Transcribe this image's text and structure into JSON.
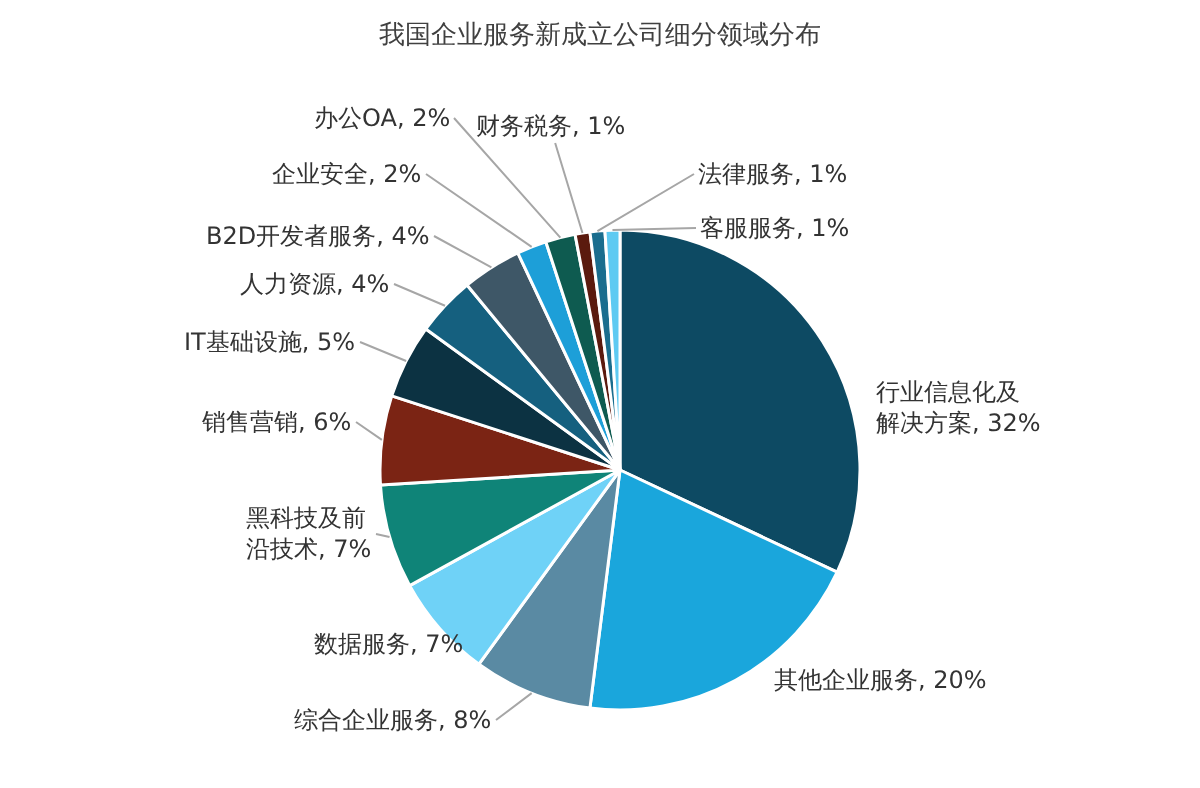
{
  "chart_data": {
    "type": "pie",
    "title": "我国企业服务新成立公司细分领域分布",
    "categories": [
      "行业信息化及解决方案",
      "其他企业服务",
      "综合企业服务",
      "数据服务",
      "黑科技及前沿技术",
      "销售营销",
      "IT基础设施",
      "人力资源",
      "B2D开发者服务",
      "企业安全",
      "办公OA",
      "财务税务",
      "法律服务",
      "客服服务"
    ],
    "values": [
      32,
      20,
      8,
      7,
      7,
      6,
      5,
      4,
      4,
      2,
      2,
      1,
      1,
      1
    ],
    "colors": [
      "#0d4a63",
      "#1aa6dc",
      "#5a8aa3",
      "#6fd2f7",
      "#0f8478",
      "#7b2414",
      "#0c3242",
      "#15607f",
      "#3e5767",
      "#1d9fd8",
      "#0e5b50",
      "#5b1a0e",
      "#1a6d8e",
      "#5ecaf2"
    ],
    "value_labels": [
      "32%",
      "20%",
      "8%",
      "7%",
      "7%",
      "6%",
      "5%",
      "4%",
      "4%",
      "2%",
      "2%",
      "1%",
      "1%",
      "1%"
    ],
    "legend": false
  }
}
